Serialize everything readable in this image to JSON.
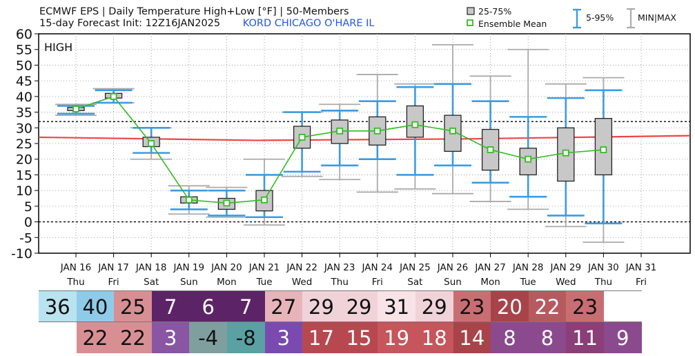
{
  "header": {
    "line1": "ECMWF EPS | Daily Temperature High+Low [°F] | 50-Members",
    "line2": "15-day Forecast Init: 12Z16JAN2025",
    "location": "KORD  CHICAGO O'HARE  IL"
  },
  "legend": {
    "box_label": "25-75%",
    "mean_label": "Ensemble Mean",
    "whisker_label": "5-95%",
    "minmax_label": "MIN|MAX"
  },
  "colors": {
    "box_fill": "#c8c8c8",
    "mean_line": "#33bb22",
    "whisker": "#3b9be0",
    "minmax": "#aaaaaa",
    "normal_line": "#ee4444"
  },
  "chart_data": {
    "type": "box",
    "panel_label": "HIGH",
    "ylim": [
      -10,
      60
    ],
    "yticks": [
      -10,
      -5,
      0,
      5,
      10,
      15,
      20,
      25,
      30,
      35,
      40,
      45,
      50,
      55,
      60
    ],
    "grid": true,
    "reference_lines": [
      0,
      32
    ],
    "normal_line": [
      27,
      26,
      26.5,
      27.5
    ],
    "categories": [
      "JAN 16",
      "JAN 17",
      "JAN 18",
      "JAN 19",
      "JAN 20",
      "JAN 21",
      "JAN 22",
      "JAN 23",
      "JAN 24",
      "JAN 25",
      "JAN 26",
      "JAN 27",
      "JAN 28",
      "JAN 29",
      "JAN 30",
      "JAN 31"
    ],
    "weekdays": [
      "Thu",
      "Fri",
      "Sat",
      "Sun",
      "Mon",
      "Tue",
      "Wed",
      "Thu",
      "Fri",
      "Sat",
      "Sun",
      "Mon",
      "Tue",
      "Wed",
      "Thu",
      "Fri"
    ],
    "series": [
      {
        "name": "Ensemble Mean",
        "values": [
          36,
          40,
          25,
          7,
          6,
          7,
          27,
          29,
          29,
          31,
          29,
          23,
          20,
          22,
          23,
          null
        ]
      },
      {
        "name": "25-75%",
        "values": [
          [
            35.5,
            36.5
          ],
          [
            39.5,
            41
          ],
          [
            24,
            27
          ],
          [
            6,
            8
          ],
          [
            4,
            7.5
          ],
          [
            3.5,
            10
          ],
          [
            23.5,
            30.5
          ],
          [
            25,
            32.5
          ],
          [
            24.5,
            33.5
          ],
          [
            27,
            37
          ],
          [
            22.5,
            34
          ],
          [
            16.5,
            29.5
          ],
          [
            15,
            23.5
          ],
          [
            13,
            30
          ],
          [
            15,
            33
          ],
          null
        ]
      },
      {
        "name": "5-95%",
        "values": [
          [
            34.5,
            37
          ],
          [
            38,
            42
          ],
          [
            22,
            30
          ],
          [
            4,
            10
          ],
          [
            2,
            10
          ],
          [
            1.5,
            15
          ],
          [
            16,
            35
          ],
          [
            18,
            35.5
          ],
          [
            20,
            38.5
          ],
          [
            15,
            43
          ],
          [
            18,
            44
          ],
          [
            12.5,
            38.5
          ],
          [
            8,
            33.5
          ],
          [
            2,
            39.5
          ],
          [
            -0.5,
            42
          ],
          null
        ]
      },
      {
        "name": "MIN|MAX",
        "values": [
          [
            34,
            37.5
          ],
          [
            38,
            42.5
          ],
          [
            20,
            30
          ],
          [
            2.5,
            11.5
          ],
          [
            1.5,
            11
          ],
          [
            -1,
            20
          ],
          [
            14.5,
            35
          ],
          [
            13.5,
            37.5
          ],
          [
            9.5,
            47
          ],
          [
            10.5,
            44
          ],
          [
            9,
            56.5
          ],
          [
            6.5,
            46.5
          ],
          [
            4,
            55
          ],
          [
            -1.5,
            44
          ],
          [
            -6.5,
            46
          ],
          null
        ]
      }
    ]
  },
  "high_row": [
    "36",
    "40",
    "25",
    "7",
    "6",
    "7",
    "27",
    "29",
    "29",
    "31",
    "29",
    "23",
    "20",
    "22",
    "23",
    ""
  ],
  "high_colors": [
    "#b9e3ef",
    "#8ecbe9",
    "#d88f93",
    "#5c2466",
    "#5c2466",
    "#5c2466",
    "#e6b4b9",
    "#f0d3d8",
    "#f0d3d8",
    "#f8e3e7",
    "#f0d3d8",
    "#c86e72",
    "#a8434a",
    "#b65a60",
    "#c86e72",
    "#ffffff"
  ],
  "low_row": [
    "",
    "22",
    "22",
    "3",
    "-4",
    "-8",
    "3",
    "17",
    "15",
    "19",
    "18",
    "14",
    "8",
    "8",
    "11",
    "9"
  ],
  "low_colors": [
    "#ffffff",
    "#d88f93",
    "#d88f93",
    "#8a55a3",
    "#7f9f9f",
    "#5aa1a3",
    "#7a4ab0",
    "#b84850",
    "#b84850",
    "#c6555c",
    "#c6555c",
    "#a8434a",
    "#8b4a8e",
    "#8b4a8e",
    "#8b3e78",
    "#8b4a8e"
  ]
}
